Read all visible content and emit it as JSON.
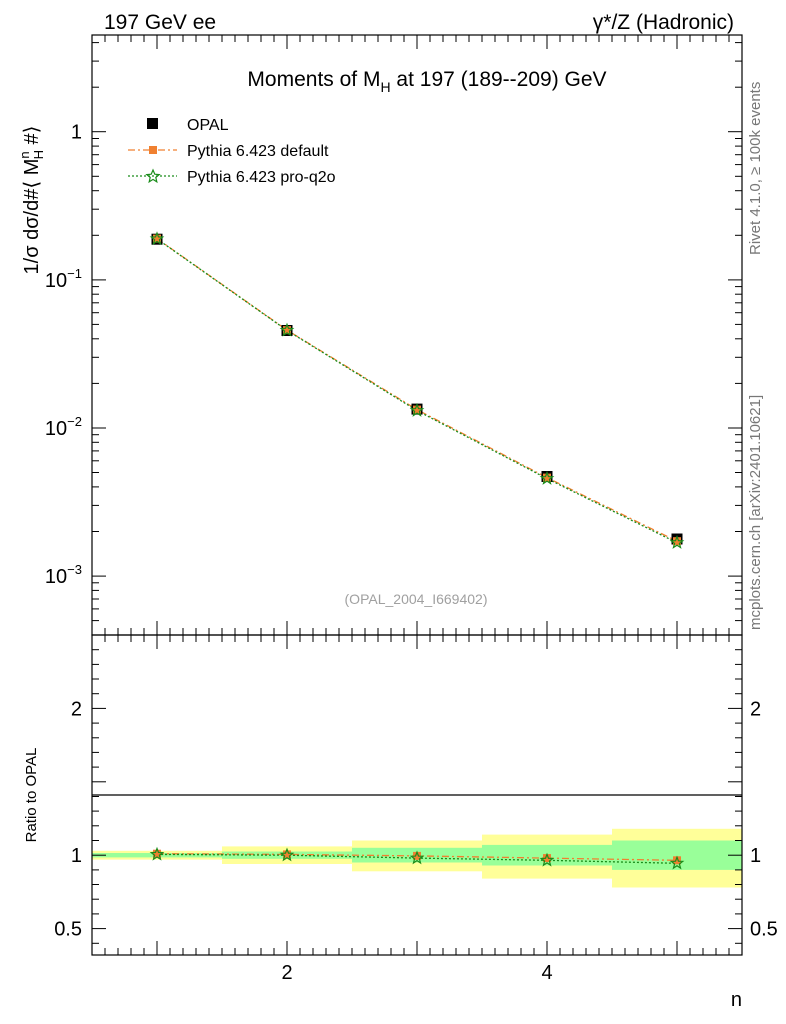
{
  "header": {
    "left": "197 GeV ee",
    "right": "γ*/Z (Hadronic)"
  },
  "side_labels": {
    "rivet": "Rivet 4.1.0, ≥ 100k events",
    "mcplots": "mcplots.cern.ch [arXiv:2401.10621]"
  },
  "chart_data": [
    {
      "type": "scatter",
      "panel": "main",
      "title": "Moments of M_H at 197 (189--209) GeV",
      "title_parts": {
        "pre": "Moments of M",
        "sub": "H",
        "post": " at 197 (189--209) GeV"
      },
      "ylabel": "1/σ  dσ/d#⟨ M^n_H #⟩",
      "ylabel_parts": {
        "pre": "1/σ   dσ/d#⟨ M",
        "sup": "n",
        "sub": "H",
        "post": " #⟩"
      },
      "xlabel": "n",
      "xlim": [
        0.5,
        5.5
      ],
      "ylim": [
        0.0004,
        4.5
      ],
      "yscale": "log",
      "yticks": [
        {
          "value": 1,
          "label": "1"
        },
        {
          "value": 0.1,
          "base": "10",
          "exp": "−1"
        },
        {
          "value": 0.01,
          "base": "10",
          "exp": "−2"
        },
        {
          "value": 0.001,
          "base": "10",
          "exp": "−3"
        }
      ],
      "watermark": "(OPAL_2004_I669402)",
      "legend_position": "top-left",
      "x": [
        1,
        2,
        3,
        4,
        5
      ],
      "series": [
        {
          "name": "OPAL",
          "style": "data",
          "color": "#000000",
          "values": [
            0.188,
            0.0455,
            0.0134,
            0.0047,
            0.00178
          ]
        },
        {
          "name": "Pythia 6.423 default",
          "style": "dashed-square",
          "color": "#f08030",
          "values": [
            0.19,
            0.0458,
            0.0133,
            0.00462,
            0.00172
          ]
        },
        {
          "name": "Pythia 6.423 pro-q2o",
          "style": "dotted-star",
          "color": "#1a8c1a",
          "values": [
            0.189,
            0.0456,
            0.0131,
            0.00455,
            0.00168
          ]
        }
      ]
    },
    {
      "type": "line",
      "panel": "ratio",
      "ylabel": "Ratio to OPAL",
      "xlabel": "n",
      "xlim": [
        0.5,
        5.5
      ],
      "ylim": [
        0.32,
        2.5
      ],
      "yticks": [
        {
          "value": 2,
          "label": "2"
        },
        {
          "value": 1,
          "label": "1"
        },
        {
          "value": 0.5,
          "label": "0.5"
        }
      ],
      "xticks": [
        {
          "value": 2,
          "label": "2"
        },
        {
          "value": 4,
          "label": "4"
        }
      ],
      "bands": [
        {
          "x": 1,
          "inner": [
            0.985,
            1.015
          ],
          "outer": [
            0.97,
            1.03
          ]
        },
        {
          "x": 2,
          "inner": [
            0.975,
            1.025
          ],
          "outer": [
            0.94,
            1.06
          ]
        },
        {
          "x": 3,
          "inner": [
            0.95,
            1.05
          ],
          "outer": [
            0.89,
            1.1
          ]
        },
        {
          "x": 4,
          "inner": [
            0.93,
            1.07
          ],
          "outer": [
            0.84,
            1.14
          ]
        },
        {
          "x": 5,
          "inner": [
            0.9,
            1.1
          ],
          "outer": [
            0.78,
            1.18
          ]
        }
      ],
      "band_colors": {
        "inner": "#99ff99",
        "outer": "#ffff99"
      },
      "series": [
        {
          "name": "Pythia 6.423 default",
          "color": "#f08030",
          "values": [
            1.01,
            1.005,
            0.995,
            0.98,
            0.965
          ]
        },
        {
          "name": "Pythia 6.423 pro-q2o",
          "color": "#1a8c1a",
          "values": [
            1.005,
            1.0,
            0.98,
            0.965,
            0.945
          ]
        }
      ]
    }
  ]
}
